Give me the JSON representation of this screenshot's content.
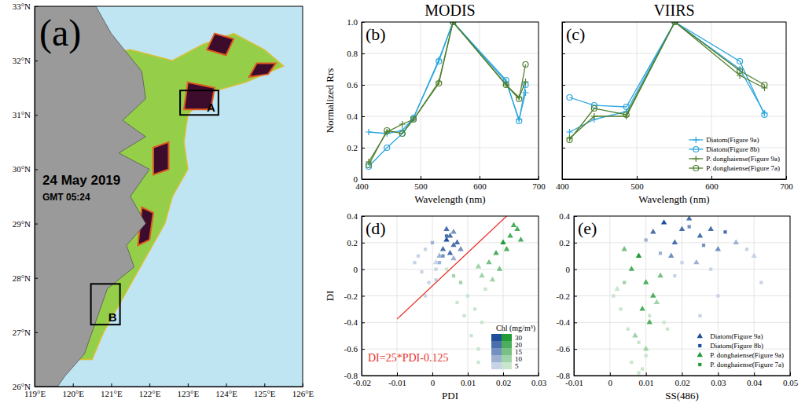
{
  "chart_data": [
    {
      "type": "map",
      "panel_label": "(a)",
      "annotations": [
        "24 May 2019",
        "GMT 05:24"
      ],
      "xlim": [
        119,
        126
      ],
      "xticks": [
        {
          "value": 119,
          "label": "119°E"
        },
        {
          "value": 120,
          "label": "120°E"
        },
        {
          "value": 121,
          "label": "121°E"
        },
        {
          "value": 122,
          "label": "122°E"
        },
        {
          "value": 123,
          "label": "123°E"
        },
        {
          "value": 124,
          "label": "124°E"
        },
        {
          "value": 125,
          "label": "125°E"
        },
        {
          "value": 126,
          "label": "126°E"
        }
      ],
      "ylim": [
        26,
        33
      ],
      "yticks": [
        {
          "value": 26,
          "label": "26°N"
        },
        {
          "value": 27,
          "label": "27°N"
        },
        {
          "value": 28,
          "label": "28°N"
        },
        {
          "value": 29,
          "label": "29°N"
        },
        {
          "value": 30,
          "label": "30°N"
        },
        {
          "value": 31,
          "label": "31°N"
        },
        {
          "value": 32,
          "label": "32°N"
        },
        {
          "value": 33,
          "label": "33°N"
        }
      ],
      "bloom": [
        [
          121.5,
          32.2
        ],
        [
          122.6,
          32.0
        ],
        [
          123.4,
          32.3
        ],
        [
          124.2,
          32.5
        ],
        [
          125.0,
          32.2
        ],
        [
          125.5,
          31.9
        ],
        [
          124.5,
          31.6
        ],
        [
          123.5,
          31.4
        ],
        [
          123.0,
          31.0
        ],
        [
          122.9,
          30.5
        ],
        [
          123.0,
          30.0
        ],
        [
          122.6,
          29.5
        ],
        [
          122.4,
          29.0
        ],
        [
          122.0,
          28.5
        ],
        [
          121.6,
          28.0
        ],
        [
          121.2,
          27.5
        ],
        [
          120.8,
          27.0
        ],
        [
          120.5,
          26.5
        ],
        [
          120.0,
          26.5
        ],
        [
          120.0,
          32.0
        ]
      ],
      "dense": [
        [
          [
            122.9,
            31.1
          ],
          [
            123.6,
            31.1
          ],
          [
            123.7,
            31.5
          ],
          [
            123.0,
            31.6
          ]
        ],
        [
          [
            123.5,
            32.2
          ],
          [
            124.0,
            32.1
          ],
          [
            124.2,
            32.4
          ],
          [
            123.7,
            32.5
          ]
        ],
        [
          [
            122.1,
            29.9
          ],
          [
            122.5,
            30.0
          ],
          [
            122.5,
            30.5
          ],
          [
            122.1,
            30.4
          ]
        ],
        [
          [
            121.7,
            28.6
          ],
          [
            122.0,
            28.7
          ],
          [
            122.1,
            29.2
          ],
          [
            121.8,
            29.3
          ]
        ],
        [
          [
            124.6,
            31.7
          ],
          [
            125.1,
            31.75
          ],
          [
            125.3,
            31.95
          ],
          [
            124.8,
            31.95
          ]
        ]
      ],
      "land": [
        [
          119.0,
          33.0
        ],
        [
          120.6,
          33.0
        ],
        [
          121.0,
          32.5
        ],
        [
          121.8,
          31.8
        ],
        [
          121.9,
          31.3
        ],
        [
          121.3,
          30.9
        ],
        [
          121.9,
          30.6
        ],
        [
          121.2,
          30.3
        ],
        [
          122.0,
          30.0
        ],
        [
          121.5,
          29.5
        ],
        [
          121.9,
          29.0
        ],
        [
          121.4,
          28.6
        ],
        [
          121.6,
          28.2
        ],
        [
          120.9,
          27.8
        ],
        [
          120.6,
          27.2
        ],
        [
          120.3,
          26.6
        ],
        [
          119.8,
          26.2
        ],
        [
          119.6,
          26.0
        ],
        [
          119.0,
          26.0
        ]
      ],
      "boxes": [
        {
          "name": "A",
          "xlim": [
            122.8,
            123.8
          ],
          "ylim": [
            31.0,
            31.45
          ]
        },
        {
          "name": "B",
          "xlim": [
            120.47,
            121.23
          ],
          "ylim": [
            27.14,
            27.89
          ]
        }
      ]
    },
    {
      "type": "line",
      "title": "MODIS",
      "panel_label": "(b)",
      "x_label": "Wavelength (nm)",
      "y_label": "Normalized Rrs",
      "grid": true,
      "x": [
        412,
        443,
        469,
        488,
        531,
        555,
        645,
        667,
        678
      ],
      "xlim": [
        400,
        700
      ],
      "xticks": [
        400,
        500,
        600,
        700
      ],
      "ylim": [
        0,
        1
      ],
      "yticks": [
        0,
        0.2,
        0.4,
        0.6,
        0.8,
        {
          "value": 1,
          "label": "1.0"
        }
      ],
      "series": [
        {
          "color": "#2ba6de",
          "marker": "plus",
          "values": [
            0.3,
            0.29,
            0.31,
            0.39,
            0.76,
            1.0,
            0.62,
            0.38,
            0.55
          ]
        },
        {
          "color": "#2ba6de",
          "marker": "circle",
          "values": [
            0.08,
            0.2,
            0.29,
            0.39,
            0.75,
            1.0,
            0.63,
            0.37,
            0.6
          ]
        },
        {
          "color": "#4f7f2e",
          "marker": "plus",
          "values": [
            0.11,
            0.3,
            0.35,
            0.38,
            0.62,
            1.0,
            0.6,
            0.52,
            0.62
          ]
        },
        {
          "color": "#4f7f2e",
          "marker": "circle",
          "values": [
            0.09,
            0.31,
            0.29,
            0.38,
            0.61,
            1.0,
            0.6,
            0.51,
            0.73
          ]
        }
      ]
    },
    {
      "type": "line",
      "title": "VIIRS",
      "panel_label": "(c)",
      "x_label": "Wavelength (nm)",
      "grid": true,
      "tick_labels": "x",
      "legend": "lower right",
      "x": [
        410,
        443,
        486,
        551,
        638,
        671
      ],
      "xlim": [
        400,
        700
      ],
      "xticks": [
        400,
        500,
        600,
        700
      ],
      "ylim": [
        0,
        1
      ],
      "yticks": [
        0,
        0.2,
        0.4,
        0.6,
        0.8,
        1
      ],
      "series": [
        {
          "name": "Diatom(Figure 9a)",
          "color": "#2ba6de",
          "marker": "plus",
          "values": [
            0.3,
            0.38,
            0.43,
            1.0,
            0.7,
            0.42
          ]
        },
        {
          "name": "Diatom(Figure 8b)",
          "color": "#2ba6de",
          "marker": "circle",
          "values": [
            0.52,
            0.47,
            0.46,
            1.0,
            0.75,
            0.41
          ]
        },
        {
          "name": "P. donghaiense(Figure 9a)",
          "color": "#4f7f2e",
          "marker": "plus",
          "values": [
            0.26,
            0.4,
            0.4,
            1.0,
            0.66,
            0.58
          ]
        },
        {
          "name": "P. donghaiense(Figure 7a)",
          "color": "#4f7f2e",
          "marker": "circle",
          "values": [
            0.25,
            0.45,
            0.41,
            1.0,
            0.69,
            0.6
          ]
        }
      ]
    },
    {
      "type": "scatter",
      "panel_label": "(d)",
      "x_label": "PDI",
      "y_label": "DI",
      "grid": true,
      "annotations": [
        "DI=25*PDI-0.125"
      ],
      "xlim": [
        -0.02,
        0.03
      ],
      "xticks": [
        -0.02,
        -0.01,
        0,
        0.01,
        0.02,
        0.03
      ],
      "ylim": [
        -0.8,
        0.4
      ],
      "yticks": [
        -0.8,
        -0.6,
        -0.4,
        -0.2,
        0,
        0.2,
        0.4
      ],
      "colorbar": {
        "title": "Chl (mg/m³)",
        "ticks": [
          5,
          10,
          15,
          20,
          30
        ]
      },
      "series": [
        {
          "color": "#1f4f9a",
          "marker": "triangle",
          "x": [
            0.004,
            0.005,
            0.006,
            0.007,
            0.003,
            0.005,
            0.006,
            0.008,
            0.004,
            0.002,
            0.006,
            0.001
          ],
          "values": [
            0.22,
            0.25,
            0.18,
            0.2,
            0.15,
            0.12,
            0.28,
            0.15,
            0.3,
            0.1,
            0.08,
            0.05
          ],
          "chl": [
            30,
            28,
            25,
            22,
            20,
            24,
            18,
            16,
            26,
            12,
            14,
            9
          ]
        },
        {
          "color": "#1f4f9a",
          "marker": "square",
          "x": [
            -0.004,
            -0.002,
            0.0,
            0.002,
            -0.003,
            0.001,
            0.003,
            -0.001,
            0.004,
            -0.005,
            0.001,
            -0.002
          ],
          "values": [
            0.1,
            0.15,
            0.2,
            0.05,
            -0.02,
            0.0,
            0.1,
            -0.1,
            0.25,
            0.05,
            -0.08,
            -0.2
          ],
          "chl": [
            6,
            8,
            12,
            10,
            5,
            7,
            15,
            4,
            20,
            5,
            3,
            4
          ]
        },
        {
          "color": "#239b38",
          "marker": "triangle",
          "x": [
            0.02,
            0.022,
            0.024,
            0.018,
            0.016,
            0.021,
            0.025,
            0.019,
            0.014,
            0.023,
            0.017,
            0.013
          ],
          "values": [
            0.2,
            0.25,
            0.3,
            0.12,
            0.05,
            0.15,
            0.22,
            0.0,
            -0.05,
            0.33,
            -0.08,
            0.02
          ],
          "chl": [
            30,
            28,
            25,
            22,
            18,
            24,
            20,
            16,
            12,
            26,
            10,
            14
          ]
        },
        {
          "color": "#239b38",
          "marker": "square",
          "x": [
            0.01,
            0.012,
            0.008,
            0.014,
            0.006,
            0.011,
            0.009,
            0.015,
            0.007,
            0.013,
            0.004,
            0.013
          ],
          "values": [
            -0.2,
            -0.3,
            -0.1,
            -0.4,
            -0.05,
            -0.5,
            -0.35,
            -0.15,
            -0.25,
            -0.6,
            0.0,
            -0.7
          ],
          "chl": [
            8,
            6,
            10,
            5,
            12,
            4,
            7,
            9,
            5,
            3,
            6,
            2
          ]
        },
        {
          "type": "line",
          "color": "#e8322a",
          "x": [
            -0.01,
            0.021
          ],
          "values": [
            -0.375,
            0.4
          ]
        }
      ]
    },
    {
      "type": "scatter",
      "panel_label": "(e)",
      "x_label": "SS(486)",
      "grid": true,
      "legend": "lower right",
      "xlim": [
        -0.01,
        0.05
      ],
      "xticks": [
        -0.01,
        0,
        0.01,
        0.02,
        0.03,
        0.04,
        0.05
      ],
      "ylim": [
        -0.8,
        0.4
      ],
      "yticks": [
        -0.8,
        -0.6,
        -0.4,
        -0.2,
        0,
        0.2,
        0.4
      ],
      "series": [
        {
          "name": "Diatom(Figure 9a)",
          "color": "#1f4f9a",
          "marker": "triangle",
          "x": [
            0.015,
            0.02,
            0.025,
            0.018,
            0.022,
            0.028,
            0.012,
            0.03,
            0.017,
            0.024,
            0.035,
            0.04
          ],
          "values": [
            0.35,
            0.3,
            0.25,
            0.2,
            0.38,
            0.3,
            0.28,
            0.15,
            0.1,
            0.05,
            0.2,
            0.1
          ],
          "chl": [
            30,
            28,
            25,
            22,
            26,
            20,
            24,
            16,
            18,
            12,
            10,
            8
          ]
        },
        {
          "name": "Diatom(Figure 8b)",
          "color": "#1f4f9a",
          "marker": "square",
          "x": [
            0.01,
            0.014,
            0.02,
            0.026,
            0.032,
            0.018,
            0.022,
            0.028,
            0.038,
            0.03,
            0.042,
            0.025
          ],
          "values": [
            0.22,
            0.12,
            0.05,
            0.18,
            0.28,
            -0.05,
            0.32,
            0.0,
            0.15,
            -0.2,
            -0.1,
            -0.35
          ],
          "chl": [
            12,
            10,
            8,
            15,
            20,
            6,
            18,
            5,
            6,
            4,
            3,
            3
          ]
        },
        {
          "name": "P. donghaiense(Figure 9a)",
          "color": "#239b38",
          "marker": "triangle",
          "x": [
            0.008,
            0.01,
            0.012,
            0.006,
            0.009,
            0.011,
            0.004,
            0.014,
            0.007,
            0.01,
            0.013,
            0.002
          ],
          "values": [
            0.1,
            -0.1,
            -0.2,
            0.0,
            -0.3,
            -0.4,
            0.15,
            -0.05,
            -0.5,
            -0.6,
            -0.25,
            -0.15
          ],
          "chl": [
            30,
            28,
            24,
            22,
            20,
            26,
            18,
            16,
            12,
            14,
            10,
            8
          ]
        },
        {
          "name": "P. donghaiense(Figure 7a)",
          "color": "#239b38",
          "marker": "square",
          "x": [
            0.005,
            0.008,
            0.01,
            0.003,
            0.015,
            0.009,
            0.001,
            0.011,
            0.006,
            0.016,
            0.004,
            0.008
          ],
          "values": [
            -0.45,
            -0.55,
            -0.65,
            -0.3,
            -0.4,
            -0.75,
            -0.2,
            -0.35,
            -0.7,
            -0.45,
            -0.1,
            -0.78
          ],
          "chl": [
            6,
            5,
            4,
            8,
            3,
            7,
            5,
            9,
            3,
            2,
            10,
            4
          ]
        }
      ]
    }
  ]
}
